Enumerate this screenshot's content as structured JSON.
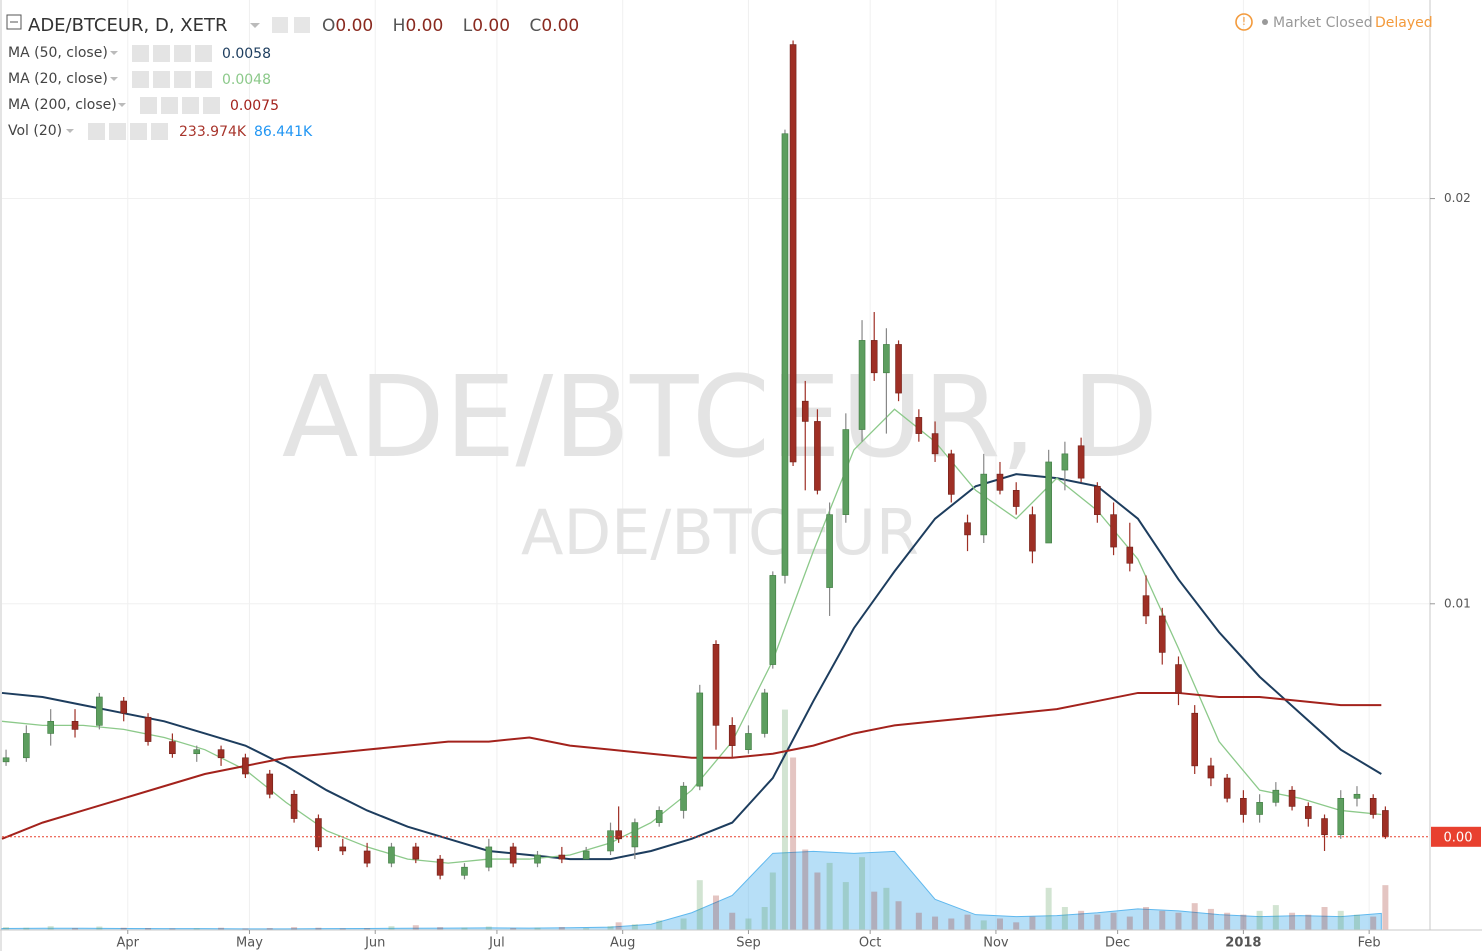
{
  "chart_data": {
    "type": "candlestick",
    "symbol_title": "ADE/BTCEUR, D, XETR",
    "ohlc": [
      {
        "label": "O",
        "value": "0.00"
      },
      {
        "label": "H",
        "value": "0.00"
      },
      {
        "label": "L",
        "value": "0.00"
      },
      {
        "label": "C",
        "value": "0.00"
      }
    ],
    "status": "Market Closed",
    "delay": "Delayed",
    "watermark": "ADE/BTCEUR, D",
    "watermark_sub": "ADE/BTCEUR",
    "xlim": [
      0,
      352
    ],
    "xticks": [
      {
        "value": 31,
        "label": "Apr"
      },
      {
        "value": 61,
        "label": "May"
      },
      {
        "value": 92,
        "label": "Jun"
      },
      {
        "value": 122,
        "label": "Jul"
      },
      {
        "value": 153,
        "label": "Aug"
      },
      {
        "value": 184,
        "label": "Sep"
      },
      {
        "value": 214,
        "label": "Oct"
      },
      {
        "value": 245,
        "label": "Nov"
      },
      {
        "value": 275,
        "label": "Dec"
      },
      {
        "value": 306,
        "label": "2018"
      },
      {
        "value": 337,
        "label": "Feb"
      }
    ],
    "ylim": [
      0.00195,
      0.0249
    ],
    "yticks": [
      0.01,
      0.02
    ],
    "grid": true,
    "up_color": "#5d9e5f",
    "down_color": "#9e2f25",
    "last_price": {
      "value": 0.00425,
      "label": "0.00"
    },
    "last_price_color": "#e8402f",
    "candles": [
      [
        1,
        0.0061,
        0.0064,
        0.006,
        0.0062
      ],
      [
        6,
        0.0062,
        0.007,
        0.0061,
        0.0068
      ],
      [
        12,
        0.0068,
        0.0074,
        0.0065,
        0.0071
      ],
      [
        18,
        0.0071,
        0.0074,
        0.0067,
        0.0069
      ],
      [
        24,
        0.007,
        0.0078,
        0.0069,
        0.0077
      ],
      [
        30,
        0.0076,
        0.0077,
        0.0071,
        0.0073
      ],
      [
        36,
        0.0072,
        0.0073,
        0.0065,
        0.0066
      ],
      [
        42,
        0.0066,
        0.0068,
        0.0062,
        0.0063
      ],
      [
        48,
        0.0063,
        0.0065,
        0.0061,
        0.0064
      ],
      [
        54,
        0.0064,
        0.0065,
        0.006,
        0.0062
      ],
      [
        60,
        0.0062,
        0.0063,
        0.0057,
        0.0058
      ],
      [
        66,
        0.0058,
        0.0059,
        0.0052,
        0.0053
      ],
      [
        72,
        0.0053,
        0.0054,
        0.0046,
        0.0047
      ],
      [
        78,
        0.0047,
        0.0048,
        0.0039,
        0.004
      ],
      [
        84,
        0.004,
        0.0042,
        0.0038,
        0.0039
      ],
      [
        90,
        0.0039,
        0.0041,
        0.0035,
        0.0036
      ],
      [
        96,
        0.0036,
        0.0041,
        0.0035,
        0.004
      ],
      [
        102,
        0.004,
        0.0041,
        0.0036,
        0.0037
      ],
      [
        108,
        0.0037,
        0.0038,
        0.0032,
        0.0033
      ],
      [
        114,
        0.0033,
        0.0036,
        0.0032,
        0.0035
      ],
      [
        120,
        0.0035,
        0.0042,
        0.0034,
        0.004
      ],
      [
        126,
        0.004,
        0.0041,
        0.0035,
        0.0036
      ],
      [
        132,
        0.0036,
        0.0039,
        0.0035,
        0.0038
      ],
      [
        138,
        0.0038,
        0.004,
        0.0036,
        0.0037
      ],
      [
        144,
        0.0037,
        0.004,
        0.0037,
        0.0039
      ],
      [
        150,
        0.0039,
        0.0046,
        0.0038,
        0.0044
      ],
      [
        152,
        0.0044,
        0.005,
        0.0041,
        0.0042
      ],
      [
        156,
        0.004,
        0.0047,
        0.0037,
        0.0046
      ],
      [
        162,
        0.0046,
        0.005,
        0.0045,
        0.0049
      ],
      [
        168,
        0.0049,
        0.0056,
        0.0047,
        0.0055
      ],
      [
        172,
        0.0055,
        0.008,
        0.0054,
        0.0078
      ],
      [
        176,
        0.009,
        0.0091,
        0.0064,
        0.007
      ],
      [
        180,
        0.007,
        0.0072,
        0.0062,
        0.0065
      ],
      [
        184,
        0.0064,
        0.007,
        0.0063,
        0.0068
      ],
      [
        188,
        0.0068,
        0.0079,
        0.0067,
        0.0078
      ],
      [
        190,
        0.0085,
        0.0108,
        0.0084,
        0.0107
      ],
      [
        193,
        0.0107,
        0.0217,
        0.0105,
        0.0216
      ],
      [
        195,
        0.0238,
        0.0239,
        0.0134,
        0.0135
      ],
      [
        198,
        0.015,
        0.0155,
        0.0128,
        0.0145
      ],
      [
        201,
        0.0145,
        0.0148,
        0.0127,
        0.0128
      ],
      [
        204,
        0.0104,
        0.0125,
        0.0097,
        0.0122
      ],
      [
        208,
        0.0122,
        0.0147,
        0.012,
        0.0143
      ],
      [
        212,
        0.0143,
        0.017,
        0.014,
        0.0165
      ],
      [
        215,
        0.0165,
        0.0172,
        0.0155,
        0.0157
      ],
      [
        218,
        0.0157,
        0.0168,
        0.0142,
        0.0164
      ],
      [
        221,
        0.0164,
        0.0165,
        0.015,
        0.0152
      ],
      [
        226,
        0.0146,
        0.0148,
        0.014,
        0.0142
      ],
      [
        230,
        0.0142,
        0.0145,
        0.0135,
        0.0137
      ],
      [
        234,
        0.0137,
        0.0138,
        0.0125,
        0.0127
      ],
      [
        238,
        0.012,
        0.0122,
        0.0113,
        0.0117
      ],
      [
        242,
        0.0117,
        0.0137,
        0.0115,
        0.0132
      ],
      [
        246,
        0.0132,
        0.0135,
        0.0127,
        0.0128
      ],
      [
        250,
        0.0128,
        0.013,
        0.0122,
        0.0124
      ],
      [
        254,
        0.0122,
        0.0124,
        0.011,
        0.0113
      ],
      [
        258,
        0.0115,
        0.0138,
        0.0115,
        0.0135
      ],
      [
        262,
        0.0133,
        0.014,
        0.0128,
        0.0137
      ],
      [
        266,
        0.0139,
        0.0141,
        0.013,
        0.0131
      ],
      [
        270,
        0.0129,
        0.013,
        0.012,
        0.0122
      ],
      [
        274,
        0.0122,
        0.0125,
        0.0112,
        0.0114
      ],
      [
        278,
        0.0114,
        0.012,
        0.0108,
        0.011
      ],
      [
        282,
        0.0102,
        0.0107,
        0.0095,
        0.0097
      ],
      [
        286,
        0.0097,
        0.0099,
        0.0085,
        0.0088
      ],
      [
        290,
        0.0085,
        0.0087,
        0.0075,
        0.0078
      ],
      [
        294,
        0.0073,
        0.0075,
        0.0058,
        0.006
      ],
      [
        298,
        0.006,
        0.0062,
        0.0055,
        0.0057
      ],
      [
        302,
        0.0057,
        0.0058,
        0.0051,
        0.0052
      ],
      [
        306,
        0.0052,
        0.0054,
        0.0046,
        0.0048
      ],
      [
        310,
        0.0048,
        0.0053,
        0.0046,
        0.0051
      ],
      [
        314,
        0.0051,
        0.0056,
        0.005,
        0.0054
      ],
      [
        318,
        0.0054,
        0.0055,
        0.0049,
        0.005
      ],
      [
        322,
        0.005,
        0.0051,
        0.0045,
        0.0047
      ],
      [
        326,
        0.0047,
        0.0048,
        0.0039,
        0.0043
      ],
      [
        330,
        0.0043,
        0.0054,
        0.0042,
        0.0052
      ],
      [
        334,
        0.0052,
        0.0055,
        0.005,
        0.0053
      ],
      [
        338,
        0.0052,
        0.0053,
        0.0047,
        0.0048
      ],
      [
        341,
        0.0049,
        0.005,
        0.0042,
        0.00425
      ]
    ],
    "series": [
      {
        "name": "MA (50, close)",
        "color": "#1d3d5e",
        "value_label": "0.0058",
        "x": [
          0,
          10,
          20,
          30,
          40,
          50,
          60,
          70,
          80,
          90,
          100,
          110,
          120,
          130,
          140,
          150,
          160,
          170,
          180,
          190,
          200,
          210,
          220,
          230,
          240,
          250,
          260,
          270,
          280,
          290,
          300,
          310,
          320,
          330,
          340
        ],
        "values": [
          0.0078,
          0.0077,
          0.0075,
          0.0073,
          0.0071,
          0.0068,
          0.0065,
          0.006,
          0.0054,
          0.0049,
          0.0045,
          0.0042,
          0.0039,
          0.0038,
          0.0037,
          0.0037,
          0.0039,
          0.0042,
          0.0046,
          0.0057,
          0.0076,
          0.0094,
          0.0108,
          0.0121,
          0.0129,
          0.0132,
          0.0131,
          0.0129,
          0.0121,
          0.0106,
          0.0093,
          0.0082,
          0.0073,
          0.0064,
          0.0058
        ]
      },
      {
        "name": "MA (20, close)",
        "color": "#8cc98a",
        "value_label": "0.0048",
        "x": [
          0,
          10,
          20,
          30,
          40,
          50,
          60,
          70,
          80,
          90,
          100,
          110,
          120,
          130,
          140,
          150,
          160,
          170,
          180,
          190,
          200,
          210,
          220,
          230,
          240,
          250,
          260,
          270,
          280,
          290,
          300,
          310,
          320,
          330,
          340
        ],
        "values": [
          0.0071,
          0.007,
          0.007,
          0.0069,
          0.0067,
          0.0064,
          0.0059,
          0.0051,
          0.0044,
          0.004,
          0.0037,
          0.0036,
          0.0037,
          0.0037,
          0.0038,
          0.0041,
          0.0046,
          0.0054,
          0.0066,
          0.0086,
          0.0113,
          0.0138,
          0.0148,
          0.014,
          0.0128,
          0.0121,
          0.0131,
          0.0123,
          0.0111,
          0.0089,
          0.0066,
          0.0054,
          0.0052,
          0.0049,
          0.0048
        ]
      },
      {
        "name": "MA (200, close)",
        "color": "#a3221c",
        "value_label": "0.0075",
        "x": [
          0,
          10,
          20,
          30,
          40,
          50,
          60,
          70,
          80,
          90,
          100,
          110,
          120,
          130,
          140,
          150,
          160,
          170,
          180,
          190,
          200,
          210,
          220,
          230,
          240,
          250,
          260,
          270,
          280,
          290,
          300,
          310,
          320,
          330,
          340
        ],
        "values": [
          0.0042,
          0.0046,
          0.0049,
          0.0052,
          0.0055,
          0.0058,
          0.006,
          0.0062,
          0.0063,
          0.0064,
          0.0065,
          0.0066,
          0.0066,
          0.0067,
          0.0065,
          0.0064,
          0.0063,
          0.0062,
          0.0062,
          0.0063,
          0.0065,
          0.0068,
          0.007,
          0.0071,
          0.0072,
          0.0073,
          0.0074,
          0.0076,
          0.0078,
          0.0078,
          0.0077,
          0.0077,
          0.0076,
          0.0075,
          0.0075
        ]
      }
    ],
    "volume": {
      "name": "Vol (20)",
      "value_label": "233.974K",
      "label_color": "#a8352c",
      "vol_lim": [
        0,
        1200000
      ],
      "values": [
        15000,
        12000,
        20000,
        10000,
        18000,
        12000,
        10000,
        8000,
        9000,
        12000,
        8000,
        10000,
        15000,
        12000,
        8000,
        9000,
        20000,
        25000,
        15000,
        12000,
        18000,
        10000,
        12000,
        15000,
        10000,
        20000,
        40000,
        30000,
        50000,
        60000,
        260000,
        180000,
        90000,
        60000,
        120000,
        300000,
        1150000,
        900000,
        420000,
        300000,
        350000,
        250000,
        380000,
        200000,
        220000,
        150000,
        90000,
        70000,
        60000,
        80000,
        50000,
        60000,
        40000,
        70000,
        220000,
        120000,
        100000,
        80000,
        90000,
        70000,
        120000,
        100000,
        90000,
        140000,
        110000,
        90000,
        80000,
        100000,
        130000,
        90000,
        80000,
        120000,
        100000,
        80000,
        70000,
        233974
      ],
      "ma": {
        "color": "#5fb8ee",
        "value_label": "86.441K",
        "x": [
          0,
          10,
          20,
          30,
          40,
          50,
          60,
          70,
          80,
          90,
          100,
          110,
          120,
          130,
          140,
          150,
          160,
          170,
          180,
          190,
          200,
          210,
          220,
          230,
          240,
          250,
          260,
          270,
          280,
          290,
          300,
          310,
          320,
          330,
          340
        ],
        "values": [
          8000,
          9000,
          9000,
          8000,
          7000,
          7000,
          6000,
          6000,
          7000,
          8000,
          9000,
          10000,
          11000,
          10000,
          12000,
          15000,
          30000,
          90000,
          180000,
          400000,
          410000,
          400000,
          410000,
          160000,
          80000,
          70000,
          75000,
          90000,
          110000,
          100000,
          80000,
          70000,
          75000,
          70000,
          86441
        ]
      }
    }
  }
}
